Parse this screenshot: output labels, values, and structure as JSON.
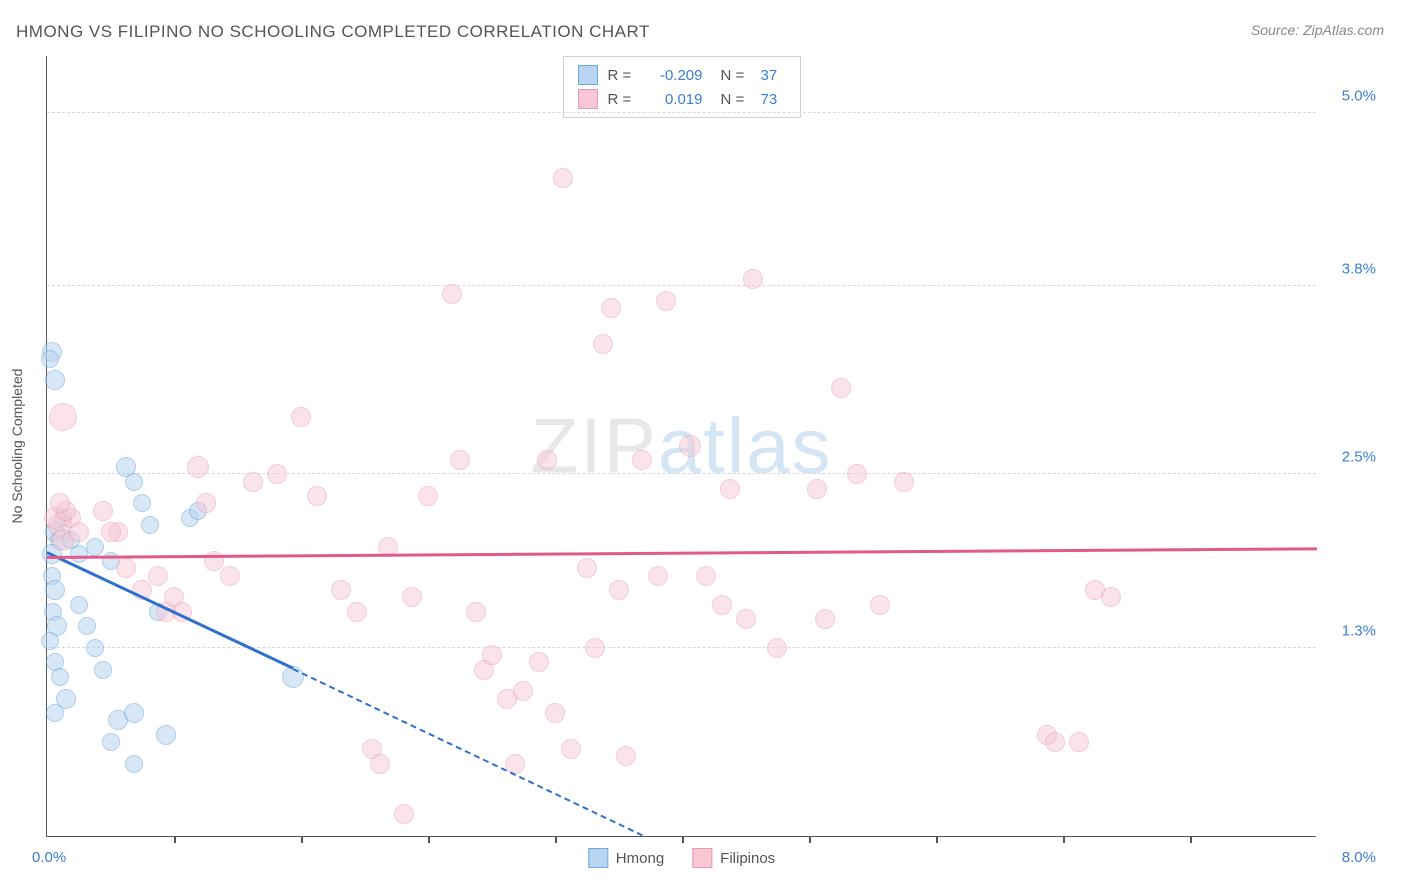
{
  "title": "HMONG VS FILIPINO NO SCHOOLING COMPLETED CORRELATION CHART",
  "source_label": "Source: ZipAtlas.com",
  "watermark": {
    "part1": "ZIP",
    "part2": "atlas"
  },
  "chart": {
    "type": "scatter",
    "background_color": "#ffffff",
    "grid_color": "#d8d8d8",
    "axis_color": "#555555",
    "x": {
      "min": 0.0,
      "max": 8.0,
      "origin_label": "0.0%",
      "max_label": "8.0%",
      "tick_positions": [
        0.8,
        1.6,
        2.4,
        3.2,
        4.0,
        4.8,
        5.6,
        6.4,
        7.2
      ]
    },
    "y": {
      "min": 0.0,
      "max": 5.4,
      "label": "No Schooling Completed",
      "gridlines": [
        {
          "value": 1.3,
          "label": "1.3%"
        },
        {
          "value": 2.5,
          "label": "2.5%"
        },
        {
          "value": 3.8,
          "label": "3.8%"
        },
        {
          "value": 5.0,
          "label": "5.0%"
        }
      ]
    },
    "series": [
      {
        "key": "hmong",
        "label": "Hmong",
        "fill_color": "#b8d4f0",
        "stroke_color": "#6aa8e0",
        "fill_opacity": 0.55,
        "r_value": "-0.209",
        "n_value": "37",
        "trend": {
          "color": "#2f6fd0",
          "width": 2.5,
          "solid": {
            "x1": 0.0,
            "y1": 1.95,
            "x2": 1.55,
            "y2": 1.15
          },
          "dashed": {
            "x1": 1.55,
            "y1": 1.15,
            "x2": 3.75,
            "y2": 0.0
          }
        },
        "points": [
          {
            "x": 0.03,
            "y": 3.35,
            "r": 10
          },
          {
            "x": 0.05,
            "y": 3.15,
            "r": 10
          },
          {
            "x": 0.02,
            "y": 3.3,
            "r": 9
          },
          {
            "x": 0.05,
            "y": 2.1,
            "r": 10
          },
          {
            "x": 0.08,
            "y": 2.05,
            "r": 10
          },
          {
            "x": 0.03,
            "y": 1.95,
            "r": 10
          },
          {
            "x": 0.03,
            "y": 1.8,
            "r": 9
          },
          {
            "x": 0.05,
            "y": 1.7,
            "r": 10
          },
          {
            "x": 0.04,
            "y": 1.55,
            "r": 9
          },
          {
            "x": 0.06,
            "y": 1.45,
            "r": 10
          },
          {
            "x": 0.02,
            "y": 1.35,
            "r": 9
          },
          {
            "x": 0.05,
            "y": 1.2,
            "r": 9
          },
          {
            "x": 0.08,
            "y": 1.1,
            "r": 9
          },
          {
            "x": 0.12,
            "y": 0.95,
            "r": 10
          },
          {
            "x": 0.05,
            "y": 0.85,
            "r": 9
          },
          {
            "x": 0.1,
            "y": 2.2,
            "r": 9
          },
          {
            "x": 0.15,
            "y": 2.05,
            "r": 9
          },
          {
            "x": 0.2,
            "y": 1.95,
            "r": 9
          },
          {
            "x": 0.25,
            "y": 1.45,
            "r": 9
          },
          {
            "x": 0.3,
            "y": 1.3,
            "r": 9
          },
          {
            "x": 0.35,
            "y": 1.15,
            "r": 9
          },
          {
            "x": 0.4,
            "y": 0.65,
            "r": 9
          },
          {
            "x": 0.5,
            "y": 2.55,
            "r": 10
          },
          {
            "x": 0.55,
            "y": 2.45,
            "r": 9
          },
          {
            "x": 0.6,
            "y": 2.3,
            "r": 9
          },
          {
            "x": 0.65,
            "y": 2.15,
            "r": 9
          },
          {
            "x": 0.55,
            "y": 0.5,
            "r": 9
          },
          {
            "x": 0.45,
            "y": 0.8,
            "r": 10
          },
          {
            "x": 0.55,
            "y": 0.85,
            "r": 10
          },
          {
            "x": 0.75,
            "y": 0.7,
            "r": 10
          },
          {
            "x": 0.3,
            "y": 2.0,
            "r": 9
          },
          {
            "x": 0.4,
            "y": 1.9,
            "r": 9
          },
          {
            "x": 1.55,
            "y": 1.1,
            "r": 11
          },
          {
            "x": 0.9,
            "y": 2.2,
            "r": 9
          },
          {
            "x": 0.95,
            "y": 2.25,
            "r": 9
          },
          {
            "x": 0.7,
            "y": 1.55,
            "r": 9
          },
          {
            "x": 0.2,
            "y": 1.6,
            "r": 9
          }
        ]
      },
      {
        "key": "filipinos",
        "label": "Filipinos",
        "fill_color": "#f7c8d4",
        "stroke_color": "#e89ab0",
        "fill_opacity": 0.5,
        "r_value": "0.019",
        "n_value": "73",
        "trend": {
          "color": "#e05a8a",
          "width": 2.5,
          "solid": {
            "x1": 0.0,
            "y1": 1.92,
            "x2": 8.0,
            "y2": 1.98
          }
        },
        "points": [
          {
            "x": 0.1,
            "y": 2.9,
            "r": 14
          },
          {
            "x": 0.08,
            "y": 2.15,
            "r": 12
          },
          {
            "x": 0.1,
            "y": 2.05,
            "r": 11
          },
          {
            "x": 0.15,
            "y": 2.2,
            "r": 10
          },
          {
            "x": 0.35,
            "y": 2.25,
            "r": 10
          },
          {
            "x": 0.5,
            "y": 1.85,
            "r": 10
          },
          {
            "x": 0.6,
            "y": 1.7,
            "r": 10
          },
          {
            "x": 0.7,
            "y": 1.8,
            "r": 10
          },
          {
            "x": 0.75,
            "y": 1.55,
            "r": 10
          },
          {
            "x": 0.8,
            "y": 1.65,
            "r": 10
          },
          {
            "x": 0.95,
            "y": 2.55,
            "r": 11
          },
          {
            "x": 0.85,
            "y": 1.55,
            "r": 10
          },
          {
            "x": 1.05,
            "y": 1.9,
            "r": 10
          },
          {
            "x": 1.15,
            "y": 1.8,
            "r": 10
          },
          {
            "x": 1.3,
            "y": 2.45,
            "r": 10
          },
          {
            "x": 1.45,
            "y": 2.5,
            "r": 10
          },
          {
            "x": 1.6,
            "y": 2.9,
            "r": 10
          },
          {
            "x": 1.7,
            "y": 2.35,
            "r": 10
          },
          {
            "x": 1.85,
            "y": 1.7,
            "r": 10
          },
          {
            "x": 1.95,
            "y": 1.55,
            "r": 10
          },
          {
            "x": 2.05,
            "y": 0.6,
            "r": 10
          },
          {
            "x": 2.1,
            "y": 0.5,
            "r": 10
          },
          {
            "x": 2.25,
            "y": 0.15,
            "r": 10
          },
          {
            "x": 2.3,
            "y": 1.65,
            "r": 10
          },
          {
            "x": 2.4,
            "y": 2.35,
            "r": 10
          },
          {
            "x": 2.55,
            "y": 3.75,
            "r": 10
          },
          {
            "x": 2.6,
            "y": 2.6,
            "r": 10
          },
          {
            "x": 2.7,
            "y": 1.55,
            "r": 10
          },
          {
            "x": 2.75,
            "y": 1.15,
            "r": 10
          },
          {
            "x": 2.8,
            "y": 1.25,
            "r": 10
          },
          {
            "x": 2.9,
            "y": 0.95,
            "r": 10
          },
          {
            "x": 2.95,
            "y": 0.5,
            "r": 10
          },
          {
            "x": 3.0,
            "y": 1.0,
            "r": 10
          },
          {
            "x": 3.1,
            "y": 1.2,
            "r": 10
          },
          {
            "x": 3.15,
            "y": 2.6,
            "r": 10
          },
          {
            "x": 3.2,
            "y": 0.85,
            "r": 10
          },
          {
            "x": 3.25,
            "y": 4.55,
            "r": 10
          },
          {
            "x": 3.3,
            "y": 0.6,
            "r": 10
          },
          {
            "x": 3.4,
            "y": 1.85,
            "r": 10
          },
          {
            "x": 3.45,
            "y": 1.3,
            "r": 10
          },
          {
            "x": 3.5,
            "y": 3.4,
            "r": 10
          },
          {
            "x": 3.55,
            "y": 3.65,
            "r": 10
          },
          {
            "x": 3.6,
            "y": 1.7,
            "r": 10
          },
          {
            "x": 3.65,
            "y": 0.55,
            "r": 10
          },
          {
            "x": 3.75,
            "y": 2.6,
            "r": 10
          },
          {
            "x": 3.85,
            "y": 1.8,
            "r": 10
          },
          {
            "x": 3.9,
            "y": 3.7,
            "r": 10
          },
          {
            "x": 4.05,
            "y": 2.7,
            "r": 11
          },
          {
            "x": 4.15,
            "y": 1.8,
            "r": 10
          },
          {
            "x": 4.25,
            "y": 1.6,
            "r": 10
          },
          {
            "x": 4.3,
            "y": 2.4,
            "r": 10
          },
          {
            "x": 4.4,
            "y": 1.5,
            "r": 10
          },
          {
            "x": 4.45,
            "y": 3.85,
            "r": 10
          },
          {
            "x": 4.6,
            "y": 1.3,
            "r": 10
          },
          {
            "x": 4.85,
            "y": 2.4,
            "r": 10
          },
          {
            "x": 4.9,
            "y": 1.5,
            "r": 10
          },
          {
            "x": 5.0,
            "y": 3.1,
            "r": 10
          },
          {
            "x": 5.1,
            "y": 2.5,
            "r": 10
          },
          {
            "x": 5.25,
            "y": 1.6,
            "r": 10
          },
          {
            "x": 5.4,
            "y": 2.45,
            "r": 10
          },
          {
            "x": 6.3,
            "y": 0.7,
            "r": 10
          },
          {
            "x": 6.35,
            "y": 0.65,
            "r": 10
          },
          {
            "x": 6.5,
            "y": 0.65,
            "r": 10
          },
          {
            "x": 6.6,
            "y": 1.7,
            "r": 10
          },
          {
            "x": 6.7,
            "y": 1.65,
            "r": 10
          },
          {
            "x": 0.05,
            "y": 2.2,
            "r": 11
          },
          {
            "x": 0.12,
            "y": 2.25,
            "r": 10
          },
          {
            "x": 0.45,
            "y": 2.1,
            "r": 10
          },
          {
            "x": 1.0,
            "y": 2.3,
            "r": 10
          },
          {
            "x": 0.4,
            "y": 2.1,
            "r": 10
          },
          {
            "x": 2.15,
            "y": 2.0,
            "r": 10
          },
          {
            "x": 0.2,
            "y": 2.1,
            "r": 10
          },
          {
            "x": 0.08,
            "y": 2.3,
            "r": 10
          }
        ]
      }
    ],
    "legend_top": {
      "r_label": "R =",
      "n_label": "N ="
    },
    "legend_bottom": [
      {
        "label": "Hmong",
        "fill": "#b8d4f0",
        "stroke": "#6aa8e0"
      },
      {
        "label": "Filipinos",
        "fill": "#f7c8d4",
        "stroke": "#e89ab0"
      }
    ]
  }
}
